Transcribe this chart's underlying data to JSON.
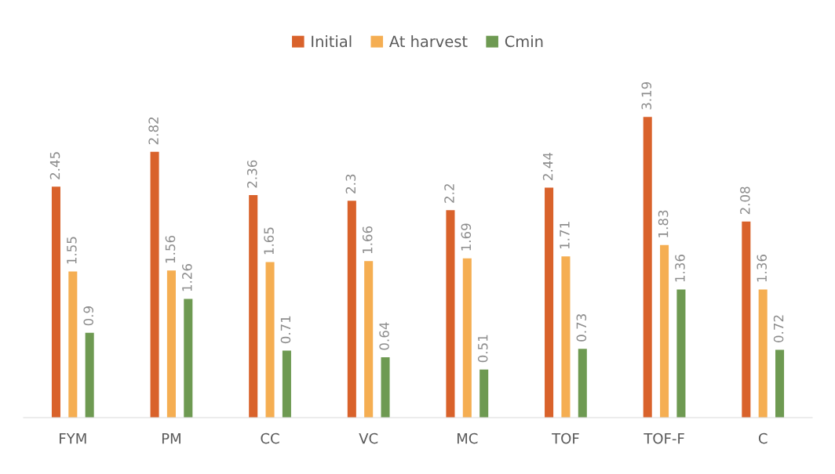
{
  "chart_data": {
    "type": "bar",
    "categories": [
      "FYM",
      "PM",
      "CC",
      "VC",
      "MC",
      "TOF",
      "TOF-F",
      "C"
    ],
    "series": [
      {
        "name": "Initial",
        "color": "#d9622b",
        "values": [
          2.45,
          2.82,
          2.36,
          2.3,
          2.2,
          2.44,
          3.19,
          2.08
        ]
      },
      {
        "name": "At harvest",
        "color": "#f5ae52",
        "values": [
          1.55,
          1.56,
          1.65,
          1.66,
          1.69,
          1.71,
          1.83,
          1.36
        ]
      },
      {
        "name": "Cmin",
        "color": "#6e9a52",
        "values": [
          0.9,
          1.26,
          0.71,
          0.64,
          0.51,
          0.73,
          1.36,
          0.72
        ]
      }
    ],
    "tick_labels": "x",
    "data_labels": true,
    "legend": "top"
  }
}
